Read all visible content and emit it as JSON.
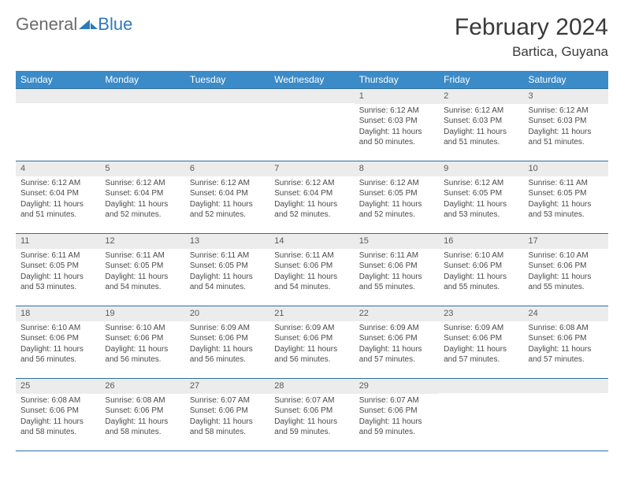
{
  "logo": {
    "part1": "General",
    "part2": "Blue"
  },
  "title": "February 2024",
  "location": "Bartica, Guyana",
  "colors": {
    "header_bg": "#3b8bc8",
    "header_text": "#ffffff",
    "cell_border": "#2e6da4",
    "daynum_bg": "#ececec",
    "body_text": "#4a4a4a",
    "title_text": "#3a3a3a",
    "logo_gray": "#6b6b6b",
    "logo_blue": "#2b7bb9"
  },
  "typography": {
    "title_fontsize": 30,
    "location_fontsize": 17,
    "header_fontsize": 12,
    "daynum_fontsize": 11,
    "cell_fontsize": 10
  },
  "weekdays": [
    "Sunday",
    "Monday",
    "Tuesday",
    "Wednesday",
    "Thursday",
    "Friday",
    "Saturday"
  ],
  "weeks": [
    [
      null,
      null,
      null,
      null,
      {
        "n": "1",
        "sunrise": "Sunrise: 6:12 AM",
        "sunset": "Sunset: 6:03 PM",
        "daylight": "Daylight: 11 hours and 50 minutes."
      },
      {
        "n": "2",
        "sunrise": "Sunrise: 6:12 AM",
        "sunset": "Sunset: 6:03 PM",
        "daylight": "Daylight: 11 hours and 51 minutes."
      },
      {
        "n": "3",
        "sunrise": "Sunrise: 6:12 AM",
        "sunset": "Sunset: 6:03 PM",
        "daylight": "Daylight: 11 hours and 51 minutes."
      }
    ],
    [
      {
        "n": "4",
        "sunrise": "Sunrise: 6:12 AM",
        "sunset": "Sunset: 6:04 PM",
        "daylight": "Daylight: 11 hours and 51 minutes."
      },
      {
        "n": "5",
        "sunrise": "Sunrise: 6:12 AM",
        "sunset": "Sunset: 6:04 PM",
        "daylight": "Daylight: 11 hours and 52 minutes."
      },
      {
        "n": "6",
        "sunrise": "Sunrise: 6:12 AM",
        "sunset": "Sunset: 6:04 PM",
        "daylight": "Daylight: 11 hours and 52 minutes."
      },
      {
        "n": "7",
        "sunrise": "Sunrise: 6:12 AM",
        "sunset": "Sunset: 6:04 PM",
        "daylight": "Daylight: 11 hours and 52 minutes."
      },
      {
        "n": "8",
        "sunrise": "Sunrise: 6:12 AM",
        "sunset": "Sunset: 6:05 PM",
        "daylight": "Daylight: 11 hours and 52 minutes."
      },
      {
        "n": "9",
        "sunrise": "Sunrise: 6:12 AM",
        "sunset": "Sunset: 6:05 PM",
        "daylight": "Daylight: 11 hours and 53 minutes."
      },
      {
        "n": "10",
        "sunrise": "Sunrise: 6:11 AM",
        "sunset": "Sunset: 6:05 PM",
        "daylight": "Daylight: 11 hours and 53 minutes."
      }
    ],
    [
      {
        "n": "11",
        "sunrise": "Sunrise: 6:11 AM",
        "sunset": "Sunset: 6:05 PM",
        "daylight": "Daylight: 11 hours and 53 minutes."
      },
      {
        "n": "12",
        "sunrise": "Sunrise: 6:11 AM",
        "sunset": "Sunset: 6:05 PM",
        "daylight": "Daylight: 11 hours and 54 minutes."
      },
      {
        "n": "13",
        "sunrise": "Sunrise: 6:11 AM",
        "sunset": "Sunset: 6:05 PM",
        "daylight": "Daylight: 11 hours and 54 minutes."
      },
      {
        "n": "14",
        "sunrise": "Sunrise: 6:11 AM",
        "sunset": "Sunset: 6:06 PM",
        "daylight": "Daylight: 11 hours and 54 minutes."
      },
      {
        "n": "15",
        "sunrise": "Sunrise: 6:11 AM",
        "sunset": "Sunset: 6:06 PM",
        "daylight": "Daylight: 11 hours and 55 minutes."
      },
      {
        "n": "16",
        "sunrise": "Sunrise: 6:10 AM",
        "sunset": "Sunset: 6:06 PM",
        "daylight": "Daylight: 11 hours and 55 minutes."
      },
      {
        "n": "17",
        "sunrise": "Sunrise: 6:10 AM",
        "sunset": "Sunset: 6:06 PM",
        "daylight": "Daylight: 11 hours and 55 minutes."
      }
    ],
    [
      {
        "n": "18",
        "sunrise": "Sunrise: 6:10 AM",
        "sunset": "Sunset: 6:06 PM",
        "daylight": "Daylight: 11 hours and 56 minutes."
      },
      {
        "n": "19",
        "sunrise": "Sunrise: 6:10 AM",
        "sunset": "Sunset: 6:06 PM",
        "daylight": "Daylight: 11 hours and 56 minutes."
      },
      {
        "n": "20",
        "sunrise": "Sunrise: 6:09 AM",
        "sunset": "Sunset: 6:06 PM",
        "daylight": "Daylight: 11 hours and 56 minutes."
      },
      {
        "n": "21",
        "sunrise": "Sunrise: 6:09 AM",
        "sunset": "Sunset: 6:06 PM",
        "daylight": "Daylight: 11 hours and 56 minutes."
      },
      {
        "n": "22",
        "sunrise": "Sunrise: 6:09 AM",
        "sunset": "Sunset: 6:06 PM",
        "daylight": "Daylight: 11 hours and 57 minutes."
      },
      {
        "n": "23",
        "sunrise": "Sunrise: 6:09 AM",
        "sunset": "Sunset: 6:06 PM",
        "daylight": "Daylight: 11 hours and 57 minutes."
      },
      {
        "n": "24",
        "sunrise": "Sunrise: 6:08 AM",
        "sunset": "Sunset: 6:06 PM",
        "daylight": "Daylight: 11 hours and 57 minutes."
      }
    ],
    [
      {
        "n": "25",
        "sunrise": "Sunrise: 6:08 AM",
        "sunset": "Sunset: 6:06 PM",
        "daylight": "Daylight: 11 hours and 58 minutes."
      },
      {
        "n": "26",
        "sunrise": "Sunrise: 6:08 AM",
        "sunset": "Sunset: 6:06 PM",
        "daylight": "Daylight: 11 hours and 58 minutes."
      },
      {
        "n": "27",
        "sunrise": "Sunrise: 6:07 AM",
        "sunset": "Sunset: 6:06 PM",
        "daylight": "Daylight: 11 hours and 58 minutes."
      },
      {
        "n": "28",
        "sunrise": "Sunrise: 6:07 AM",
        "sunset": "Sunset: 6:06 PM",
        "daylight": "Daylight: 11 hours and 59 minutes."
      },
      {
        "n": "29",
        "sunrise": "Sunrise: 6:07 AM",
        "sunset": "Sunset: 6:06 PM",
        "daylight": "Daylight: 11 hours and 59 minutes."
      },
      null,
      null
    ]
  ]
}
